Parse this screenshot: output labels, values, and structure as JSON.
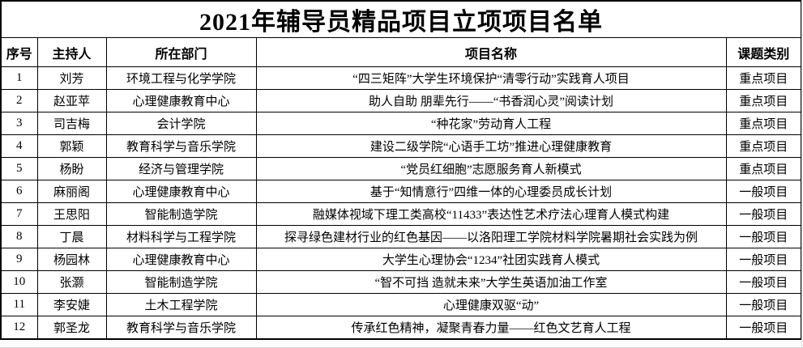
{
  "title": "2021年辅导员精品项目立项项目名单",
  "table": {
    "headers": [
      "序号",
      "主持人",
      "所在部门",
      "项目名称",
      "课题类别"
    ],
    "rows": [
      {
        "no": "1",
        "leader": "刘芳",
        "department": "环境工程与化学学院",
        "project": "“四三矩阵”大学生环境保护“清零行动”实践育人项目",
        "category": "重点项目"
      },
      {
        "no": "2",
        "leader": "赵亚苹",
        "department": "心理健康教育中心",
        "project": "助人自助 朋辈先行——“书香润心灵”阅读计划",
        "category": "重点项目"
      },
      {
        "no": "3",
        "leader": "司吉梅",
        "department": "会计学院",
        "project": "“种花家”劳动育人工程",
        "category": "重点项目"
      },
      {
        "no": "4",
        "leader": "郭颖",
        "department": "教育科学与音乐学院",
        "project": "建设二级学院“心语手工坊”推进心理健康教育",
        "category": "重点项目"
      },
      {
        "no": "5",
        "leader": "杨盼",
        "department": "经济与管理学院",
        "project": "“党员红细胞”志愿服务育人新模式",
        "category": "重点项目"
      },
      {
        "no": "6",
        "leader": "麻丽阁",
        "department": "心理健康教育中心",
        "project": "基于“知情意行”四维一体的心理委员成长计划",
        "category": "一般项目"
      },
      {
        "no": "7",
        "leader": "王思阳",
        "department": "智能制造学院",
        "project": "融媒体视域下理工类高校“11433”表达性艺术疗法心理育人模式构建",
        "category": "一般项目"
      },
      {
        "no": "8",
        "leader": "丁晨",
        "department": "材料科学与工程学院",
        "project": "探寻绿色建材行业的红色基因——以洛阳理工学院材料学院暑期社会实践为例",
        "category": "一般项目"
      },
      {
        "no": "9",
        "leader": "杨园林",
        "department": "心理健康教育中心",
        "project": "大学生心理协会“1234”社团实践育人模式",
        "category": "一般项目"
      },
      {
        "no": "10",
        "leader": "张灏",
        "department": "智能制造学院",
        "project": "“智不可挡 造就未来”大学生英语加油工作室",
        "category": "一般项目"
      },
      {
        "no": "11",
        "leader": "李安婕",
        "department": "土木工程学院",
        "project": "心理健康双驱“动”",
        "category": "一般项目"
      },
      {
        "no": "12",
        "leader": "郭圣龙",
        "department": "教育科学与音乐学院",
        "project": "传承红色精神，凝聚青春力量——红色文艺育人工程",
        "category": "一般项目"
      }
    ]
  }
}
